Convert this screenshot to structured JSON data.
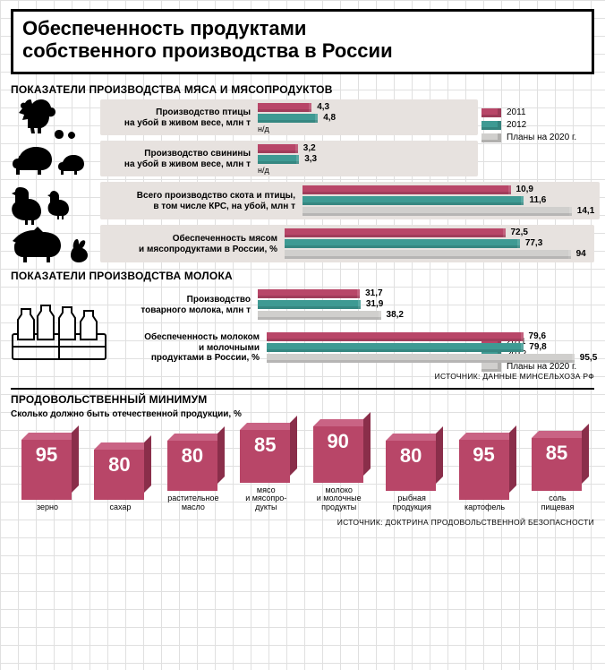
{
  "title_l1": "Обеспеченность продуктами",
  "title_l2": "собственного производства в России",
  "colors": {
    "c2011": "#b84668",
    "c2012": "#3e9a93",
    "c2020": "#d0cfcd",
    "band": "#e7e2df",
    "grid": "#e0e0e0",
    "cube_top": "#c96384",
    "cube_side": "#8a2e4a",
    "text": "#000000",
    "bg": "#ffffff"
  },
  "legend": {
    "y2011": "2011",
    "y2012": "2012",
    "plan2020": "Планы на 2020 г."
  },
  "meat": {
    "header": "ПОКАЗАТЕЛИ ПРОИЗВОДСТВА МЯСА И МЯСОПРОДУКТОВ",
    "max_scale": 100,
    "rows": [
      {
        "label_l1": "Производство птицы",
        "label_l2": "на убой в живом весе, млн т",
        "nd": "н/д",
        "v2011": 4.3,
        "v2012": 4.8,
        "plan": null,
        "label_w": 170,
        "bar_scale": 15
      },
      {
        "label_l1": "Производство свинины",
        "label_l2": "на убой в живом весе, млн т",
        "nd": "н/д",
        "v2011": 3.2,
        "v2012": 3.3,
        "plan": null,
        "label_w": 170,
        "bar_scale": 15
      },
      {
        "label_l1": "Всего производство скота и птицы,",
        "label_l2": "в том числе КРС, на убой, млн т",
        "nd": null,
        "v2011": 10.9,
        "v2012": 11.6,
        "plan": 14.1,
        "label_w": 220,
        "bar_scale": 15
      },
      {
        "label_l1": "Обеспеченность мясом",
        "label_l2": "и мясопродуктами в России, %",
        "nd": null,
        "v2011": 72.5,
        "v2012": 77.3,
        "plan": 94,
        "label_w": 200,
        "bar_scale": 100
      }
    ]
  },
  "milk": {
    "header": "ПОКАЗАТЕЛИ ПРОИЗВОДСТВА МОЛОКА",
    "rows": [
      {
        "label_l1": "Производство",
        "label_l2": "товарного молока, млн т",
        "v2011": 31.7,
        "v2012": 31.9,
        "plan": 38.2,
        "label_w": 150,
        "bar_scale": 50
      },
      {
        "label_l1": "Обеспеченность молоком",
        "label_l2": "и молочными",
        "label_l3": "продуктами в России, %",
        "v2011": 79.6,
        "v2012": 79.8,
        "plan": 95.5,
        "label_w": 160,
        "bar_scale": 100
      }
    ],
    "source": "ИСТОЧНИК: ДАННЫЕ МИНСЕЛЬХОЗА РФ"
  },
  "minimum": {
    "header": "ПРОДОВОЛЬСТВЕННЫЙ МИНИМУМ",
    "sub": "Сколько должно быть отечественной продукции, %",
    "base_h": 0.7,
    "items": [
      {
        "label": "зерно",
        "value": 95
      },
      {
        "label": "сахар",
        "value": 80
      },
      {
        "label": "растительное\nмасло",
        "value": 80
      },
      {
        "label": "мясо\nи мясопро-\nдукты",
        "value": 85
      },
      {
        "label": "молоко\nи молочные\nпродукты",
        "value": 90
      },
      {
        "label": "рыбная\nпродукция",
        "value": 80
      },
      {
        "label": "картофель",
        "value": 95
      },
      {
        "label": "соль\nпищевая",
        "value": 85
      }
    ],
    "source": "ИСТОЧНИК: ДОКТРИНА ПРОДОВОЛЬСТВЕННОЙ БЕЗОПАСНОСТИ"
  }
}
